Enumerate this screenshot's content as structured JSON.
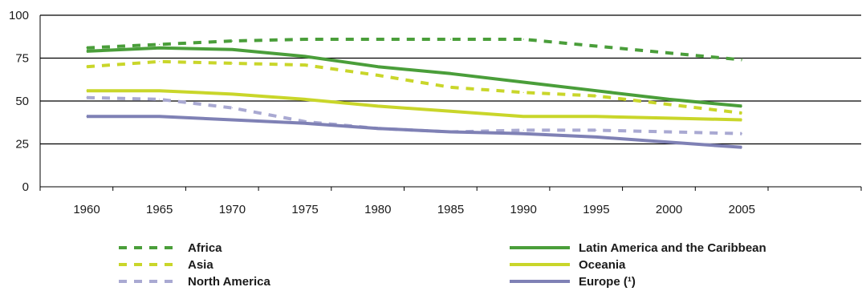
{
  "chart_data": {
    "type": "line",
    "title": "",
    "xlabel": "",
    "ylabel": "",
    "x": [
      1960,
      1965,
      1970,
      1975,
      1980,
      1985,
      1990,
      1995,
      2000,
      2005
    ],
    "x_tick_labels": [
      "1960",
      "1965",
      "1970",
      "1975",
      "1980",
      "1985",
      "1990",
      "1995",
      "2000",
      "2005"
    ],
    "ylim": [
      0,
      100
    ],
    "y_ticks": [
      0,
      25,
      50,
      75,
      100
    ],
    "y_tick_labels": [
      "0",
      "25",
      "50",
      "75",
      "100"
    ],
    "grid": "horizontal",
    "legend_position": "bottom",
    "series": [
      {
        "name": "Africa",
        "color": "#4a9e3a",
        "style": "dashed",
        "values": [
          81,
          83,
          85,
          86,
          86,
          86,
          86,
          82,
          78,
          74
        ]
      },
      {
        "name": "Asia",
        "color": "#c9d62a",
        "style": "dashed",
        "values": [
          70,
          73,
          72,
          71,
          65,
          58,
          55,
          53,
          48,
          43
        ]
      },
      {
        "name": "North America",
        "color": "#a9a9d2",
        "style": "dashed",
        "values": [
          52,
          51,
          46,
          38,
          34,
          32,
          33,
          33,
          32,
          31
        ]
      },
      {
        "name": "Latin America and the Caribbean",
        "color": "#4a9e3a",
        "style": "solid",
        "values": [
          79,
          81,
          80,
          76,
          70,
          66,
          61,
          56,
          51,
          47
        ]
      },
      {
        "name": "Oceania",
        "color": "#c9d62a",
        "style": "solid",
        "values": [
          56,
          56,
          54,
          51,
          47,
          44,
          41,
          41,
          40,
          39
        ]
      },
      {
        "name": "Europe (¹)",
        "color": "#7f81b5",
        "style": "solid",
        "values": [
          41,
          41,
          39,
          37,
          34,
          32,
          31,
          29,
          26,
          23
        ]
      }
    ]
  }
}
